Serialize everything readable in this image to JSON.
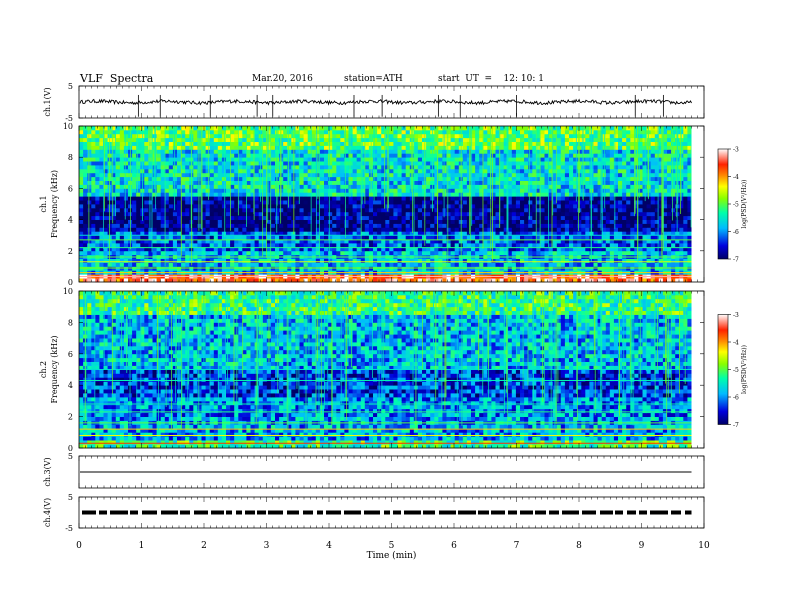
{
  "header": {
    "title": "VLF  Spectra",
    "date": "Mar.20, 2016",
    "station": "station=ATH",
    "start": "start  UT  =    12: 10: 1"
  },
  "chart_data": [
    {
      "type": "line",
      "id": "ch1-waveform",
      "ylabel": "ch.1(V)",
      "ylim": [
        -5,
        5
      ],
      "yticks": [
        "5",
        "-5"
      ],
      "xlim": [
        0,
        10
      ],
      "baseline": 0,
      "trace_end_min": 9.8,
      "spike_times_min": [
        0.95,
        1.3,
        2.1,
        2.85,
        3.1,
        4.4,
        4.85,
        5.75,
        6.1,
        7.0,
        8.9,
        9.35
      ]
    },
    {
      "type": "heatmap",
      "id": "ch1-spectrogram",
      "ylabel": "ch.1\nFrequency  (kHz)",
      "ylabel_line1": "ch.1",
      "ylabel_line2": "Frequency  (kHz)",
      "ylim": [
        0,
        10
      ],
      "yticks": [
        "0",
        "2",
        "4",
        "6",
        "8",
        "10"
      ],
      "xlim": [
        0,
        10
      ],
      "data_end_min": 9.8,
      "colorbar": {
        "label": "log(PSD(V²/Hz))",
        "range": [
          -7,
          -3
        ],
        "ticks": [
          "-3",
          "-4",
          "-5",
          "-6",
          "-7"
        ]
      },
      "approx_logpsd_by_band": [
        {
          "f_khz": [
            0,
            0.5
          ],
          "value": -3.5
        },
        {
          "f_khz": [
            0.5,
            2.0
          ],
          "value": -5.8
        },
        {
          "f_khz": [
            2.0,
            3.2
          ],
          "value": -6.2
        },
        {
          "f_khz": [
            3.2,
            5.5
          ],
          "value": -6.9
        },
        {
          "f_khz": [
            5.5,
            8.5
          ],
          "value": -5.6
        },
        {
          "f_khz": [
            8.5,
            10
          ],
          "value": -5.0
        }
      ]
    },
    {
      "type": "heatmap",
      "id": "ch2-spectrogram",
      "ylabel": "ch.2\nFrequency  (kHz)",
      "ylabel_line1": "ch.2",
      "ylabel_line2": "Frequency  (kHz)",
      "ylim": [
        0,
        10
      ],
      "yticks": [
        "0",
        "2",
        "4",
        "6",
        "8",
        "10"
      ],
      "xlim": [
        0,
        10
      ],
      "data_end_min": 9.8,
      "colorbar": {
        "label": "log(PSD(V²/Hz))",
        "range": [
          -7,
          -3
        ],
        "ticks": [
          "-3",
          "-4",
          "-5",
          "-6",
          "-7"
        ]
      },
      "approx_logpsd_by_band": [
        {
          "f_khz": [
            0,
            0.6
          ],
          "value": -5.2
        },
        {
          "f_khz": [
            0.6,
            2.0
          ],
          "value": -5.9
        },
        {
          "f_khz": [
            2.0,
            3.2
          ],
          "value": -6.0
        },
        {
          "f_khz": [
            3.2,
            5.0
          ],
          "value": -6.4
        },
        {
          "f_khz": [
            5.0,
            8.5
          ],
          "value": -5.8
        },
        {
          "f_khz": [
            8.5,
            10
          ],
          "value": -5.2
        }
      ]
    },
    {
      "type": "line",
      "id": "ch3-waveform",
      "ylabel": "ch.3(V)",
      "ylim": [
        -5,
        5
      ],
      "yticks": [
        "5"
      ],
      "xlim": [
        0,
        10
      ],
      "baseline": 0,
      "trace_end_min": 9.8
    },
    {
      "type": "line",
      "id": "ch4-waveform",
      "ylabel": "ch.4(V)",
      "ylim": [
        -5,
        5
      ],
      "yticks": [
        "5",
        "-5"
      ],
      "xlim": [
        0,
        10
      ],
      "baseline": 0,
      "trace_end_min": 9.8,
      "pattern": "dashed pulses"
    }
  ],
  "xaxis": {
    "label": "Time  (min)",
    "ticks": [
      "0",
      "1",
      "2",
      "3",
      "4",
      "5",
      "6",
      "7",
      "8",
      "9",
      "10"
    ]
  }
}
